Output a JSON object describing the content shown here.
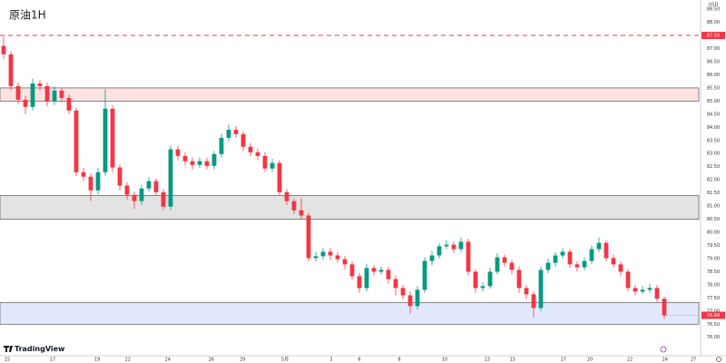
{
  "chart_data": {
    "type": "candlestick",
    "title": "原油1H",
    "y_unit": "USD",
    "brand": "TradingView",
    "up_color": "#089981",
    "down_color": "#f23645",
    "grid": false,
    "xlim": [
      -0.5,
      95.75
    ],
    "ylim": [
      75.3,
      88.85
    ],
    "xticks": [
      {
        "value": 0.5,
        "label": "15"
      },
      {
        "value": 6.75,
        "label": "17"
      },
      {
        "value": 12.9,
        "label": "19"
      },
      {
        "value": 17.1,
        "label": "22"
      },
      {
        "value": 22.6,
        "label": "24"
      },
      {
        "value": 28.6,
        "label": "26"
      },
      {
        "value": 32.9,
        "label": "29"
      },
      {
        "value": 38.75,
        "label": "5月"
      },
      {
        "value": 45.1,
        "label": "3"
      },
      {
        "value": 49,
        "label": "6"
      },
      {
        "value": 54.5,
        "label": "8"
      },
      {
        "value": 60.75,
        "label": "10"
      },
      {
        "value": 66.6,
        "label": "13"
      },
      {
        "value": 70.1,
        "label": "15"
      },
      {
        "value": 77.1,
        "label": "17"
      },
      {
        "value": 80.75,
        "label": "20"
      },
      {
        "value": 86.25,
        "label": "22"
      },
      {
        "value": 91.1,
        "label": "24"
      },
      {
        "value": 95,
        "label": "27"
      }
    ],
    "yticks": [
      {
        "value": 76,
        "label": "76.00"
      },
      {
        "value": 76.5,
        "label": "76.50"
      },
      {
        "value": 77,
        "label": "77.00"
      },
      {
        "value": 77.5,
        "label": "77.50"
      },
      {
        "value": 78,
        "label": "78.00"
      },
      {
        "value": 78.5,
        "label": "78.50"
      },
      {
        "value": 79,
        "label": "79.00"
      },
      {
        "value": 79.5,
        "label": "79.50"
      },
      {
        "value": 80,
        "label": "80.00"
      },
      {
        "value": 80.5,
        "label": "80.50"
      },
      {
        "value": 81,
        "label": "81.00"
      },
      {
        "value": 81.5,
        "label": "81.50"
      },
      {
        "value": 82,
        "label": "82.00"
      },
      {
        "value": 82.5,
        "label": "82.50"
      },
      {
        "value": 83,
        "label": "83.00"
      },
      {
        "value": 83.5,
        "label": "83.50"
      },
      {
        "value": 84,
        "label": "84.00"
      },
      {
        "value": 84.5,
        "label": "84.50"
      },
      {
        "value": 85,
        "label": "85.00"
      },
      {
        "value": 85.5,
        "label": "85.50"
      },
      {
        "value": 86,
        "label": "86.00"
      },
      {
        "value": 86.5,
        "label": "86.50"
      },
      {
        "value": 87,
        "label": "87.00"
      },
      {
        "value": 88,
        "label": "88.00"
      },
      {
        "value": 88.5,
        "label": "88.50"
      }
    ],
    "zones": [
      {
        "from": 85.0,
        "to": 85.5,
        "color": "#fde2e2"
      },
      {
        "from": 80.5,
        "to": 81.4,
        "color": "#e3e3e3"
      },
      {
        "from": 76.5,
        "to": 77.33,
        "color": "#e3e9fd"
      }
    ],
    "hlines": [
      {
        "value": 87.5,
        "label": "87.50",
        "color": "#f23645"
      }
    ],
    "last_price": {
      "value": 76.84,
      "label": "76.84"
    },
    "open": [
      87.1,
      86.78,
      85.57,
      85.05,
      84.78,
      85.67,
      85.57,
      84.98,
      85.4,
      85.12,
      84.64,
      82.29,
      82.12,
      81.6,
      82.29,
      84.71,
      82.47,
      81.78,
      81.43,
      81.19,
      81.67,
      81.95,
      81.53,
      80.98,
      83.16,
      82.91,
      82.71,
      82.57,
      82.71,
      82.53,
      82.98,
      83.6,
      83.91,
      83.74,
      83.26,
      83.05,
      82.91,
      82.43,
      82.64,
      81.53,
      81.19,
      80.84,
      80.64,
      79.02,
      79.09,
      79.26,
      79.12,
      78.98,
      78.78,
      78.33,
      77.88,
      78.64,
      78.5,
      78.57,
      78.22,
      77.88,
      77.6,
      77.19,
      77.81,
      78.91,
      79.12,
      79.47,
      79.53,
      79.36,
      79.64,
      78.5,
      77.88,
      77.95,
      78.5,
      79.05,
      78.84,
      78.57,
      77.88,
      77.64,
      77.12,
      78.57,
      78.84,
      79.12,
      79.26,
      78.78,
      78.67,
      78.91,
      79.36,
      79.6,
      79.02,
      78.78,
      78.5,
      77.88,
      77.74,
      77.81,
      77.88,
      77.47
    ],
    "high": [
      87.45,
      86.9,
      85.7,
      85.2,
      85.85,
      85.8,
      85.7,
      85.55,
      85.5,
      85.25,
      84.75,
      82.45,
      82.25,
      82.45,
      85.45,
      84.85,
      82.6,
      81.9,
      81.55,
      81.8,
      82.1,
      82.05,
      81.65,
      83.3,
      83.3,
      83.05,
      82.85,
      82.85,
      82.85,
      83.1,
      83.75,
      84.1,
      84.05,
      83.85,
      83.4,
      83.2,
      83.05,
      82.8,
      82.75,
      81.65,
      81.3,
      81.3,
      80.75,
      79.25,
      79.4,
      79.4,
      79.25,
      79.1,
      78.9,
      78.45,
      78.8,
      78.75,
      78.7,
      78.7,
      78.35,
      78.0,
      77.75,
      77.95,
      79.05,
      79.3,
      79.6,
      79.7,
      79.65,
      79.8,
      79.75,
      78.6,
      78.1,
      78.65,
      79.2,
      79.15,
      78.95,
      78.7,
      78.0,
      77.75,
      78.7,
      79.0,
      79.25,
      79.4,
      79.35,
      78.9,
      79.05,
      79.5,
      79.8,
      79.7,
      79.15,
      78.9,
      78.6,
      78.0,
      77.95,
      78.05,
      78.0,
      77.55
    ],
    "low": [
      86.6,
      85.4,
      84.9,
      84.5,
      84.65,
      85.4,
      84.8,
      84.85,
      84.95,
      84.5,
      82.15,
      81.95,
      81.2,
      81.45,
      82.15,
      82.3,
      81.6,
      81.25,
      80.9,
      81.05,
      81.55,
      81.4,
      80.85,
      80.85,
      82.75,
      82.55,
      82.4,
      82.45,
      82.4,
      82.4,
      82.85,
      83.45,
      83.6,
      83.1,
      82.9,
      82.75,
      82.3,
      82.3,
      81.4,
      81.05,
      80.7,
      80.5,
      78.9,
      78.9,
      78.95,
      78.95,
      78.85,
      78.6,
      78.2,
      77.7,
      77.75,
      78.35,
      78.4,
      78.05,
      77.6,
      77.45,
      76.9,
      77.05,
      77.7,
      78.75,
      79.0,
      79.35,
      79.2,
      79.25,
      78.35,
      77.7,
      77.75,
      77.85,
      78.4,
      78.7,
      78.4,
      77.7,
      77.45,
      76.75,
      77.0,
      78.45,
      78.7,
      79.0,
      78.65,
      78.5,
      78.55,
      78.8,
      79.25,
      78.9,
      78.65,
      78.35,
      77.75,
      77.6,
      77.65,
      77.7,
      77.35,
      76.7
    ],
    "close": [
      86.78,
      85.57,
      85.05,
      84.78,
      85.67,
      85.57,
      84.98,
      85.4,
      85.12,
      84.64,
      82.29,
      82.12,
      81.6,
      82.29,
      84.71,
      82.47,
      81.78,
      81.43,
      81.19,
      81.67,
      81.95,
      81.53,
      80.98,
      83.16,
      82.91,
      82.71,
      82.57,
      82.71,
      82.53,
      82.98,
      83.6,
      83.91,
      83.74,
      83.26,
      83.05,
      82.91,
      82.43,
      82.64,
      81.53,
      81.19,
      80.84,
      80.64,
      79.02,
      79.09,
      79.26,
      79.12,
      78.98,
      78.78,
      78.33,
      77.88,
      78.64,
      78.5,
      78.57,
      78.22,
      77.88,
      77.6,
      77.19,
      77.81,
      78.91,
      79.12,
      79.47,
      79.53,
      79.36,
      79.64,
      78.5,
      77.88,
      77.95,
      78.5,
      79.05,
      78.84,
      78.57,
      77.88,
      77.64,
      77.12,
      78.57,
      78.84,
      79.12,
      79.26,
      78.78,
      78.67,
      78.91,
      79.36,
      79.6,
      79.02,
      78.78,
      78.5,
      77.88,
      77.74,
      77.81,
      77.88,
      77.47,
      76.84
    ]
  }
}
